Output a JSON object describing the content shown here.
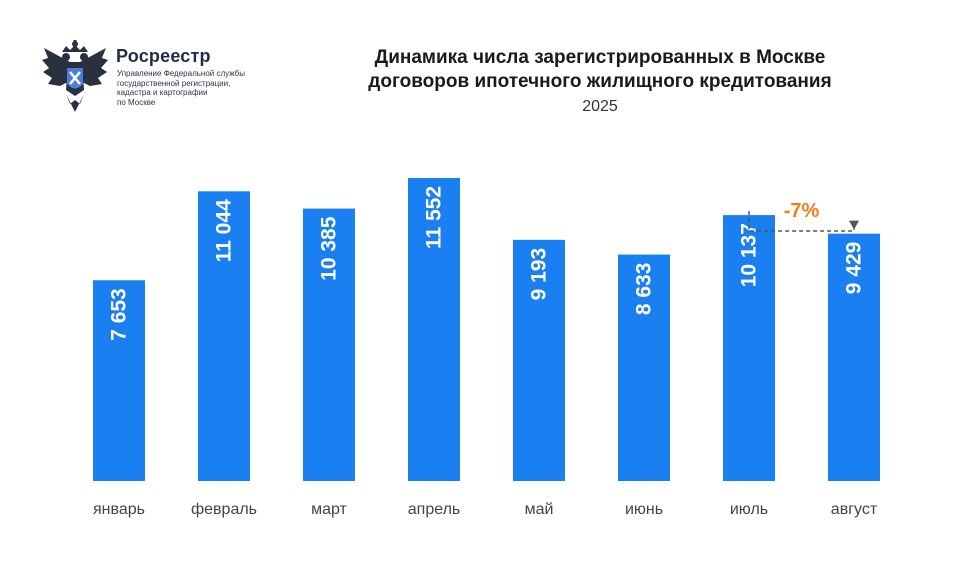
{
  "logo": {
    "name": "Росреестр",
    "subtitle_lines": [
      "Управление Федеральной службы",
      "государственной регистрации,",
      "кадастра и картографии",
      "по Москве"
    ]
  },
  "header": {
    "title_lines": [
      "Динамика числа зарегистрированных в Москве",
      "договоров ипотечного жилищного кредитования"
    ],
    "subtitle": "2025"
  },
  "colors": {
    "bar": "#1a7ff0",
    "bar_label": "#ffffff",
    "annotation": "#f07d1a",
    "arrow": "#555555",
    "logo_navy": "#1f2d4d"
  },
  "chart_data": {
    "type": "bar",
    "title": "Динамика числа зарегистрированных в Москве договоров ипотечного жилищного кредитования",
    "subtitle": "2025",
    "categories": [
      "январь",
      "февраль",
      "март",
      "апрель",
      "май",
      "июнь",
      "июль",
      "август"
    ],
    "values": [
      7653,
      11044,
      10385,
      11552,
      9193,
      8633,
      10137,
      9429
    ],
    "value_labels": [
      "7 653",
      "11 044",
      "10 385",
      "11 552",
      "9 193",
      "8 633",
      "10 137",
      "9 429"
    ],
    "xlabel": "",
    "ylabel": "",
    "ylim": [
      0,
      13000
    ],
    "grid": false,
    "legend": "none",
    "annotations": [
      {
        "text": "-7%",
        "from": "июль",
        "to": "август"
      }
    ]
  }
}
